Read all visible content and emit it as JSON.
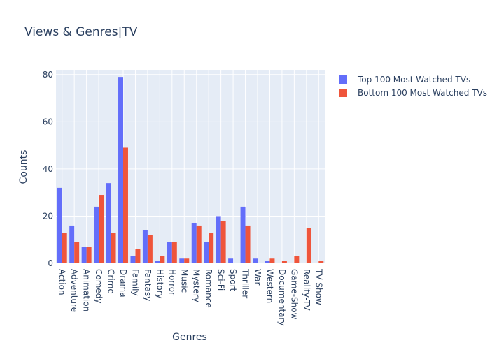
{
  "chart_data": {
    "type": "bar",
    "title": "Views & Genres|TV",
    "xlabel": "Genres",
    "ylabel": "Counts",
    "ylim": [
      0,
      82
    ],
    "yticks": [
      0,
      20,
      40,
      60,
      80
    ],
    "grid": true,
    "legend_position": "top-right",
    "categories": [
      "Action",
      "Adventure",
      "Animation",
      "Comedy",
      "Crime",
      "Drama",
      "Family",
      "Fantasy",
      "History",
      "Horror",
      "Music",
      "Mystery",
      "Romance",
      "Sci-Fi",
      "Sport",
      "Thriller",
      "War",
      "Western",
      "Documentary",
      "Game-Show",
      "Reality-TV",
      "TV Show"
    ],
    "series": [
      {
        "name": "Top 100 Most Watched TVs",
        "color": "#636efa",
        "values": [
          32,
          16,
          7,
          24,
          34,
          79,
          3,
          14,
          1,
          9,
          2,
          17,
          9,
          20,
          2,
          24,
          2,
          1,
          0,
          0,
          0,
          0
        ]
      },
      {
        "name": "Bottom 100 Most Watched TVs",
        "color": "#ef553b",
        "values": [
          13,
          9,
          7,
          29,
          13,
          49,
          6,
          12,
          3,
          9,
          2,
          16,
          13,
          18,
          0,
          16,
          0,
          2,
          1,
          3,
          15,
          1
        ]
      }
    ],
    "colors": {
      "plot_background": "#e5ecf6",
      "grid": "#ffffff",
      "text": "#2a3f5f"
    }
  }
}
